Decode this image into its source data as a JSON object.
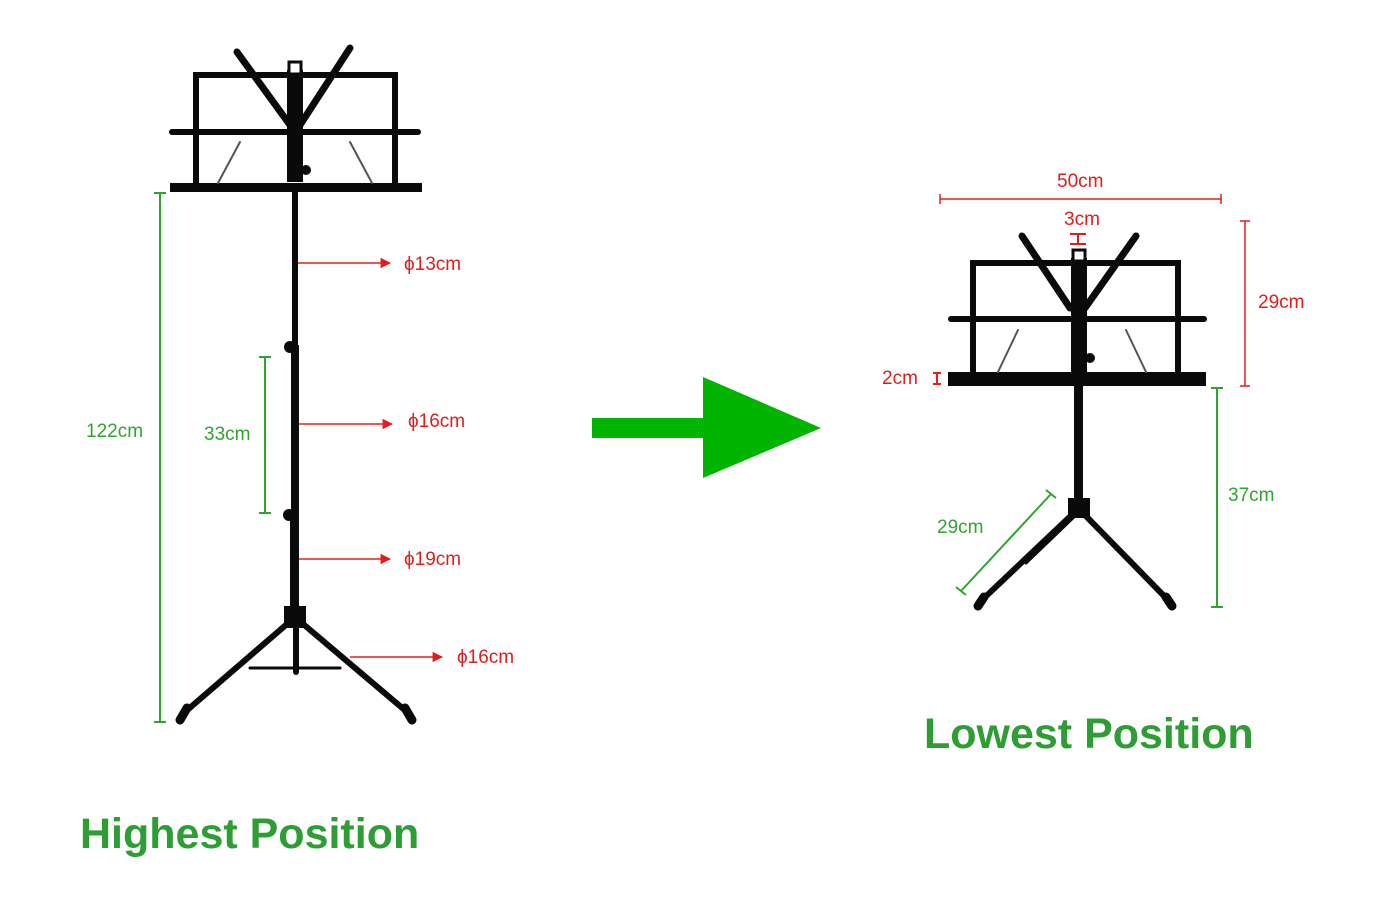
{
  "colors": {
    "dimension_red": "#e01e1e",
    "dimension_green": "#2fa52f",
    "title_green": "#2e9e34",
    "arrow_green": "#00b400",
    "stand_black": "#0a0a0a"
  },
  "highest": {
    "title": "Highest Position",
    "total_height": "122cm",
    "tube_section": "33cm",
    "diam_top": "ϕ13cm",
    "diam_mid": "ϕ16cm",
    "diam_low": "ϕ19cm",
    "diam_legs": "ϕ16cm"
  },
  "lowest": {
    "title": "Lowest Position",
    "width": "50cm",
    "clip": "3cm",
    "desk_height": "29cm",
    "ledge": "2cm",
    "shaft_height": "37cm",
    "leg_length": "29cm"
  },
  "transition_arrow": "arrow-right-icon"
}
